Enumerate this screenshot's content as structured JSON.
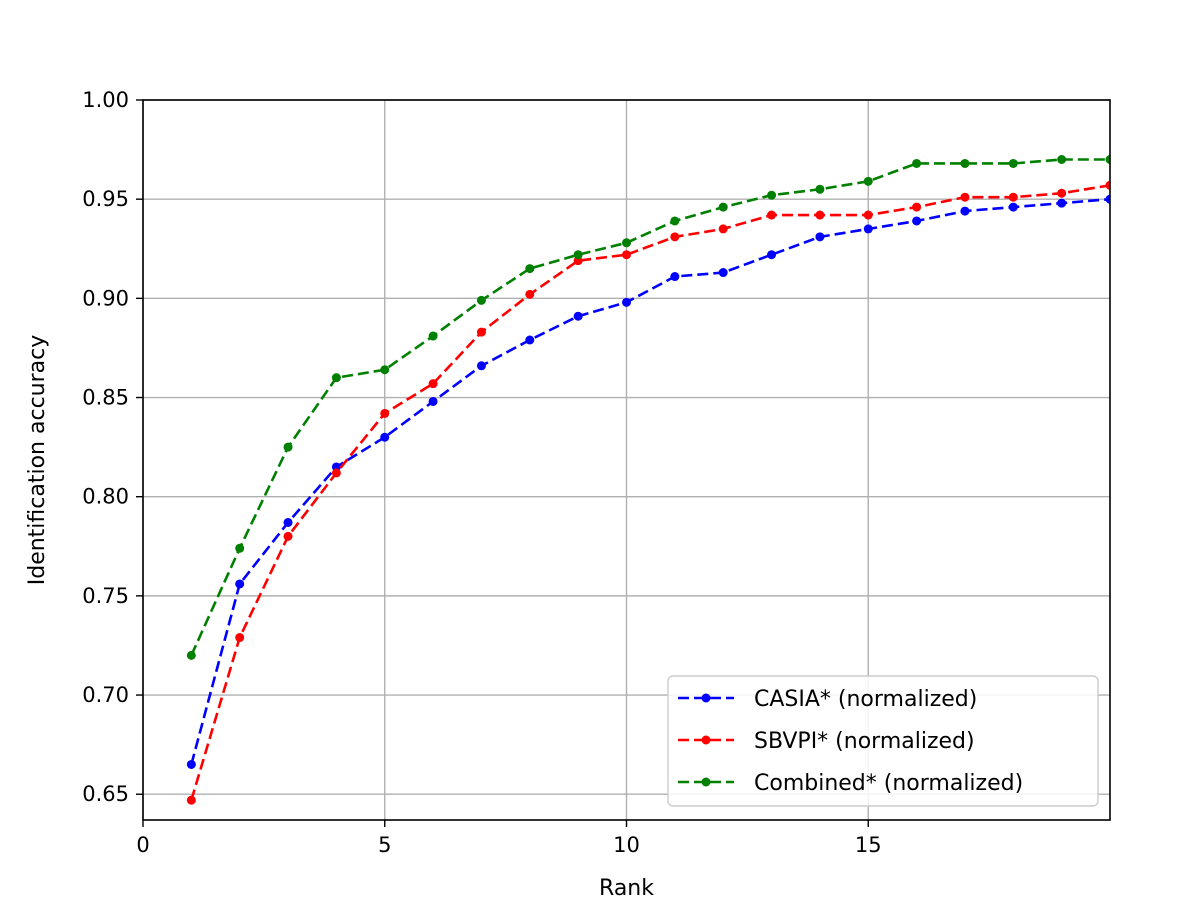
{
  "chart_data": {
    "type": "line",
    "xlabel": "Rank",
    "ylabel": "Identification accuracy",
    "xlim": [
      0,
      20
    ],
    "ylim": [
      0.637,
      1.0
    ],
    "xticks": [
      0,
      5,
      10,
      15
    ],
    "xtick_labels": [
      "0",
      "5",
      "10",
      "15"
    ],
    "yticks": [
      0.65,
      0.7,
      0.75,
      0.8,
      0.85,
      0.9,
      0.95,
      1.0
    ],
    "ytick_labels": [
      "0.65",
      "0.70",
      "0.75",
      "0.80",
      "0.85",
      "0.90",
      "0.95",
      "1.00"
    ],
    "grid": true,
    "legend_position": "lower-right",
    "x": [
      1,
      2,
      3,
      4,
      5,
      6,
      7,
      8,
      9,
      10,
      11,
      12,
      13,
      14,
      15,
      16,
      17,
      18,
      19,
      20
    ],
    "series": [
      {
        "name": "CASIA* (normalized)",
        "color": "#0000ff",
        "values": [
          0.665,
          0.756,
          0.787,
          0.815,
          0.83,
          0.848,
          0.866,
          0.879,
          0.891,
          0.898,
          0.911,
          0.913,
          0.922,
          0.931,
          0.935,
          0.939,
          0.944,
          0.946,
          0.948,
          0.95
        ]
      },
      {
        "name": "SBVPI* (normalized)",
        "color": "#ff0000",
        "values": [
          0.647,
          0.729,
          0.78,
          0.812,
          0.842,
          0.857,
          0.883,
          0.902,
          0.919,
          0.922,
          0.931,
          0.935,
          0.942,
          0.942,
          0.942,
          0.946,
          0.951,
          0.951,
          0.953,
          0.957
        ]
      },
      {
        "name": "Combined* (normalized)",
        "color": "#008000",
        "values": [
          0.72,
          0.774,
          0.825,
          0.86,
          0.864,
          0.881,
          0.899,
          0.915,
          0.922,
          0.928,
          0.939,
          0.946,
          0.952,
          0.955,
          0.959,
          0.968,
          0.968,
          0.968,
          0.97,
          0.97
        ]
      }
    ]
  }
}
